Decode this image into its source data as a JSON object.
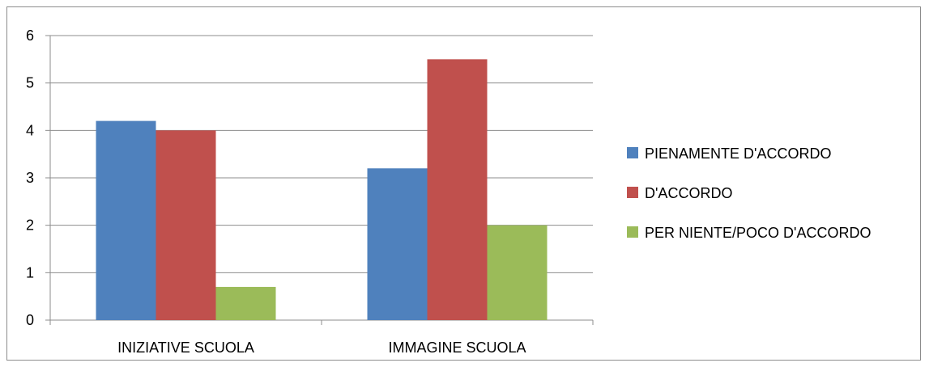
{
  "chart_data": {
    "type": "bar",
    "categories": [
      "INIZIATIVE SCUOLA",
      "IMMAGINE SCUOLA"
    ],
    "series": [
      {
        "name": "PIENAMENTE D'ACCORDO",
        "values": [
          4.2,
          3.2
        ],
        "color": "#4f81bd"
      },
      {
        "name": "D'ACCORDO",
        "values": [
          4.0,
          5.5
        ],
        "color": "#c0504d"
      },
      {
        "name": "PER NIENTE/POCO D'ACCORDO",
        "values": [
          0.7,
          2.0
        ],
        "color": "#9bbb59"
      }
    ],
    "yticks": [
      "0",
      "1",
      "2",
      "3",
      "4",
      "5",
      "6"
    ],
    "ylim": [
      0,
      6
    ],
    "grid": true,
    "legend_position": "right"
  }
}
